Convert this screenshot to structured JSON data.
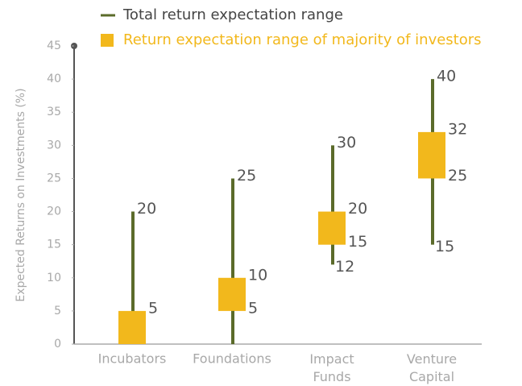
{
  "chart_data": {
    "type": "range",
    "y_label": "Expected Returns on Investments (%)",
    "categories": [
      "Incubators",
      "Foundations",
      "Impact Funds",
      "Venture Capital"
    ],
    "ylim": [
      0,
      45
    ],
    "yticks": [
      0,
      5,
      10,
      15,
      20,
      25,
      30,
      35,
      40,
      45
    ],
    "legend": "top",
    "series": [
      {
        "name": "Total return expectation range",
        "color": "#5b6b2a",
        "low": [
          0,
          0,
          12,
          15
        ],
        "high": [
          20,
          25,
          30,
          40
        ],
        "low_labels": [
          null,
          null,
          "12",
          "15"
        ],
        "high_labels": [
          "20",
          "25",
          "30",
          "40"
        ]
      },
      {
        "name": "Return expectation range of majority of investors",
        "color": "#f2b81c",
        "low": [
          0,
          5,
          15,
          25
        ],
        "high": [
          5,
          10,
          20,
          32
        ],
        "low_labels": [
          null,
          "5",
          "15",
          "25"
        ],
        "high_labels": [
          "5",
          "10",
          "20",
          "32"
        ]
      }
    ]
  }
}
